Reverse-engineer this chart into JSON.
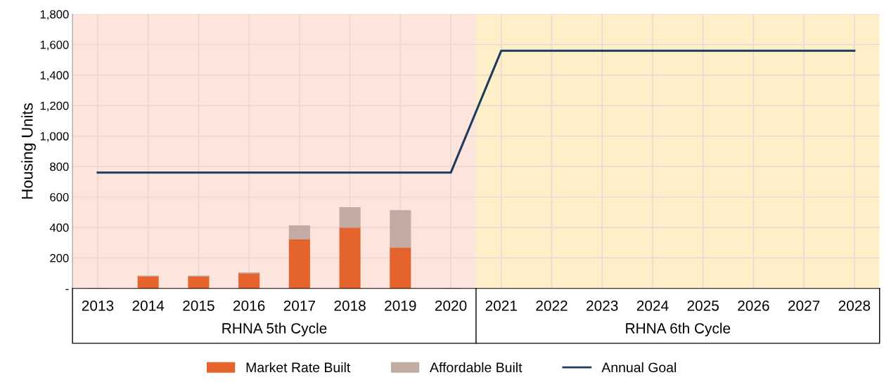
{
  "chart_data": {
    "type": "bar",
    "stacked": true,
    "ylabel": "Housing Units",
    "categories": [
      "2013",
      "2014",
      "2015",
      "2016",
      "2017",
      "2018",
      "2019",
      "2020",
      "2021",
      "2022",
      "2023",
      "2024",
      "2025",
      "2026",
      "2027",
      "2028"
    ],
    "series": [
      {
        "name": "Market Rate Built",
        "color": "#e5642e",
        "values": [
          0,
          80,
          80,
          100,
          325,
          400,
          270,
          0,
          null,
          null,
          null,
          null,
          null,
          null,
          null,
          null
        ]
      },
      {
        "name": "Affordable Built",
        "color": "#c2aba3",
        "values": [
          0,
          0,
          0,
          0,
          85,
          130,
          240,
          0,
          null,
          null,
          null,
          null,
          null,
          null,
          null,
          null
        ]
      },
      {
        "name": "Annual Goal",
        "type": "line",
        "color": "#1f3a5f",
        "values": [
          760,
          760,
          760,
          760,
          760,
          760,
          760,
          760,
          1560,
          1560,
          1560,
          1560,
          1560,
          1560,
          1560,
          1560
        ]
      }
    ],
    "ylim": [
      0,
      1800
    ],
    "yticks": [
      {
        "value": 0,
        "label": "-"
      },
      {
        "value": 200,
        "label": "200"
      },
      {
        "value": 400,
        "label": "400"
      },
      {
        "value": 600,
        "label": "600"
      },
      {
        "value": 800,
        "label": "800"
      },
      {
        "value": 1000,
        "label": "1,000"
      },
      {
        "value": 1200,
        "label": "1,200"
      },
      {
        "value": 1400,
        "label": "1,400"
      },
      {
        "value": 1600,
        "label": "1,600"
      },
      {
        "value": 1800,
        "label": "1,800"
      }
    ],
    "bands": [
      {
        "axis": "x",
        "from": "2013",
        "to": "2020",
        "label": "RHNA 5th Cycle",
        "color": "#fde4dc"
      },
      {
        "axis": "x",
        "from": "2021",
        "to": "2028",
        "label": "RHNA 6th Cycle",
        "color": "#fdf0c9"
      }
    ],
    "grid": true,
    "legend": "bottom"
  }
}
